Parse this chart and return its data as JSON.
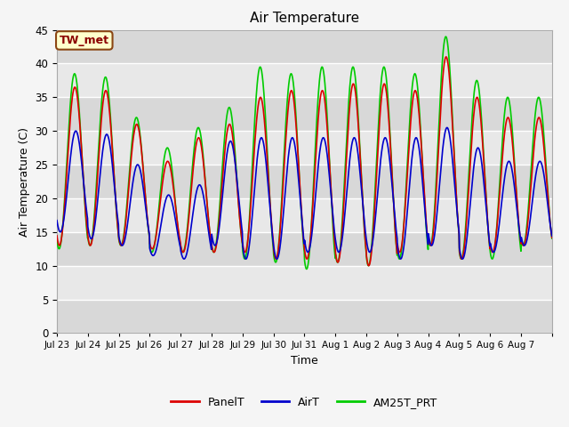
{
  "title": "Air Temperature",
  "xlabel": "Time",
  "ylabel": "Air Temperature (C)",
  "ylim": [
    0,
    45
  ],
  "yticks": [
    0,
    5,
    10,
    15,
    20,
    25,
    30,
    35,
    40,
    45
  ],
  "annotation_text": "TW_met",
  "annotation_bg": "#ffffcc",
  "annotation_border": "#8B4513",
  "annotation_text_color": "#8B0000",
  "line_colors": {
    "PanelT": "#dd0000",
    "AirT": "#0000cc",
    "AM25T_PRT": "#00cc00"
  },
  "fig_bg": "#f5f5f5",
  "plot_bg": "#e8e8e8",
  "band_light": "#e8e8e8",
  "band_dark": "#d8d8d8",
  "x_tick_labels": [
    "Jul 23",
    "Jul 24",
    "Jul 25",
    "Jul 26",
    "Jul 27",
    "Jul 28",
    "Jul 29",
    "Jul 30",
    "Jul 31",
    "Aug 1",
    "Aug 2",
    "Aug 3",
    "Aug 4",
    "Aug 5",
    "Aug 6",
    "Aug 7"
  ],
  "panel_peaks": [
    36.5,
    36.0,
    31.0,
    25.5,
    29.0,
    31.0,
    35.0,
    36.0,
    36.0,
    37.0,
    37.0,
    36.0,
    41.0,
    35.0,
    32.0,
    32.0
  ],
  "panel_troughs": [
    13.0,
    13.0,
    13.0,
    12.5,
    12.0,
    12.0,
    12.0,
    11.0,
    11.0,
    10.5,
    10.0,
    12.0,
    13.0,
    11.0,
    12.0,
    13.0
  ],
  "air_peaks": [
    30.0,
    29.5,
    25.0,
    20.5,
    22.0,
    28.5,
    29.0,
    29.0,
    29.0,
    29.0,
    29.0,
    29.0,
    30.5,
    27.5,
    25.5,
    25.5
  ],
  "air_troughs": [
    15.0,
    14.0,
    13.0,
    11.5,
    11.0,
    13.0,
    11.0,
    11.0,
    12.0,
    12.0,
    12.0,
    11.0,
    13.0,
    11.0,
    12.0,
    13.0
  ],
  "am25_peaks": [
    38.5,
    38.0,
    32.0,
    27.5,
    30.5,
    33.5,
    39.5,
    38.5,
    39.5,
    39.5,
    39.5,
    38.5,
    44.0,
    37.5,
    35.0,
    35.0
  ],
  "am25_troughs": [
    12.5,
    13.0,
    13.0,
    12.0,
    12.0,
    12.0,
    11.0,
    10.5,
    9.5,
    10.5,
    10.0,
    11.0,
    13.0,
    11.0,
    11.0,
    13.0
  ],
  "peak_hour": 0.58,
  "trough_hour": 0.25
}
